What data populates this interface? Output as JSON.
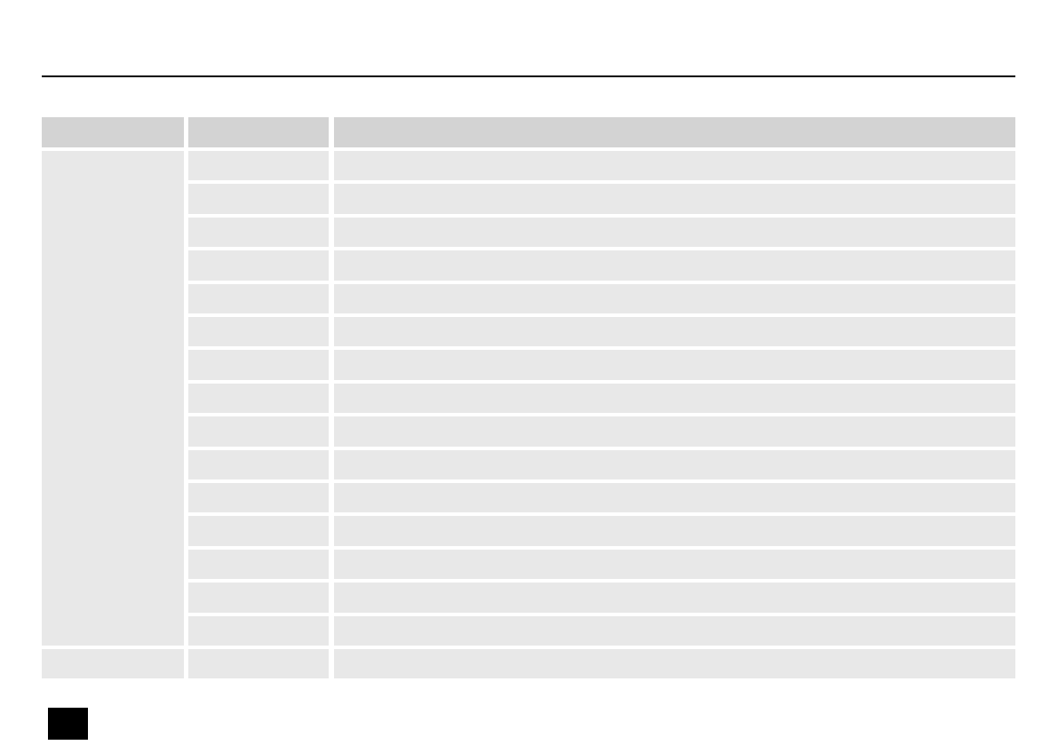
{
  "colors": {
    "header_fill": "#d3d3d3",
    "row_fill": "#e8e8e8",
    "rule": "#000000",
    "page_tab": "#000000"
  },
  "table": {
    "columns": [
      "",
      "",
      ""
    ],
    "groups": [
      {
        "label": "",
        "rows": [
          [
            "",
            ""
          ],
          [
            "",
            ""
          ],
          [
            "",
            ""
          ],
          [
            "",
            ""
          ],
          [
            "",
            ""
          ],
          [
            "",
            ""
          ],
          [
            "",
            ""
          ],
          [
            "",
            ""
          ],
          [
            "",
            ""
          ],
          [
            "",
            ""
          ],
          [
            "",
            ""
          ],
          [
            "",
            ""
          ],
          [
            "",
            ""
          ],
          [
            "",
            ""
          ],
          [
            "",
            ""
          ]
        ]
      },
      {
        "label": "",
        "rows": [
          [
            "",
            ""
          ]
        ]
      }
    ]
  }
}
